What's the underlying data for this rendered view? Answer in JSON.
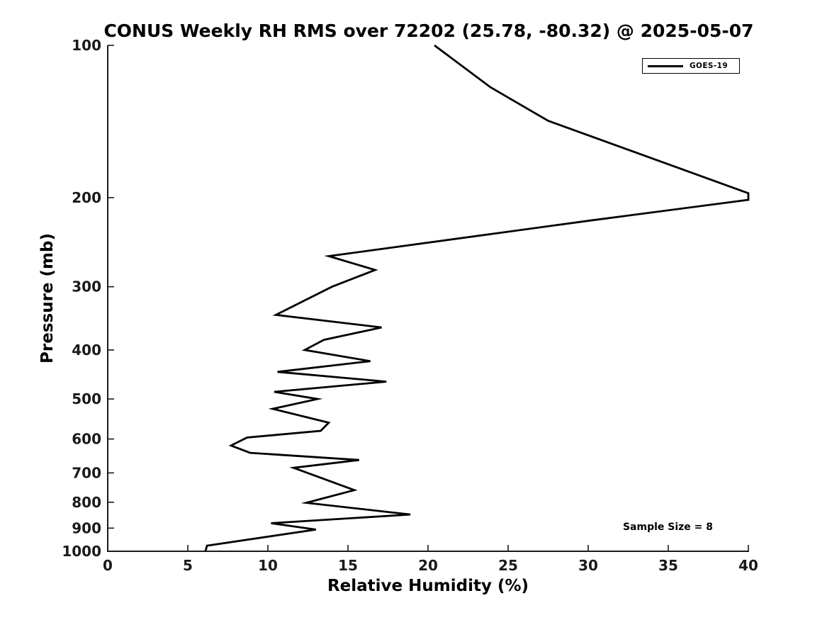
{
  "title": "CONUS Weekly RH RMS over 72202 (25.78, -80.32) @ 2025-05-07",
  "legend": {
    "position": "upper right",
    "entries": [
      {
        "label": "GOES-19",
        "color": "#000000",
        "line_style": "solid"
      }
    ]
  },
  "annotations": {
    "sample_size": "Sample Size = 8"
  },
  "chart_data": {
    "type": "line",
    "title": "CONUS Weekly RH RMS over 72202 (25.78, -80.32) @ 2025-05-07",
    "xlabel": "Relative Humidity (%)",
    "ylabel": "Pressure (mb)",
    "xlim": [
      0,
      40
    ],
    "ylim": [
      100,
      1000
    ],
    "x_scale": "linear",
    "y_scale": "log",
    "y_inverted": true,
    "grid": false,
    "background_color": "#ffffff",
    "line_color": "#000000",
    "x_ticks": [
      0,
      5,
      10,
      15,
      20,
      25,
      30,
      35,
      40
    ],
    "y_ticks": [
      100,
      200,
      300,
      400,
      500,
      600,
      700,
      800,
      900,
      1000
    ],
    "legend_position": "upper right",
    "series": [
      {
        "name": "GOES-19",
        "color": "#000000",
        "point_format": [
          "pressure_mb",
          "rh_percent"
        ],
        "points": [
          [
            100,
            20.4
          ],
          [
            121,
            23.9
          ],
          [
            141,
            27.5
          ],
          [
            196,
            40.0
          ],
          [
            202,
            40.0
          ],
          [
            222,
            30.1
          ],
          [
            261,
            13.8
          ],
          [
            278,
            16.7
          ],
          [
            300,
            14.0
          ],
          [
            341,
            10.5
          ],
          [
            361,
            17.1
          ],
          [
            382,
            13.5
          ],
          [
            400,
            12.3
          ],
          [
            421,
            16.4
          ],
          [
            442,
            10.6
          ],
          [
            462,
            17.4
          ],
          [
            484,
            10.4
          ],
          [
            500,
            13.1
          ],
          [
            523,
            10.3
          ],
          [
            557,
            13.8
          ],
          [
            578,
            13.3
          ],
          [
            596,
            8.7
          ],
          [
            618,
            7.7
          ],
          [
            639,
            8.9
          ],
          [
            660,
            15.7
          ],
          [
            684,
            11.6
          ],
          [
            708,
            12.9
          ],
          [
            757,
            15.4
          ],
          [
            802,
            12.4
          ],
          [
            846,
            18.9
          ],
          [
            880,
            10.2
          ],
          [
            906,
            13.0
          ],
          [
            975,
            6.2
          ],
          [
            1000,
            6.1
          ]
        ]
      }
    ]
  }
}
